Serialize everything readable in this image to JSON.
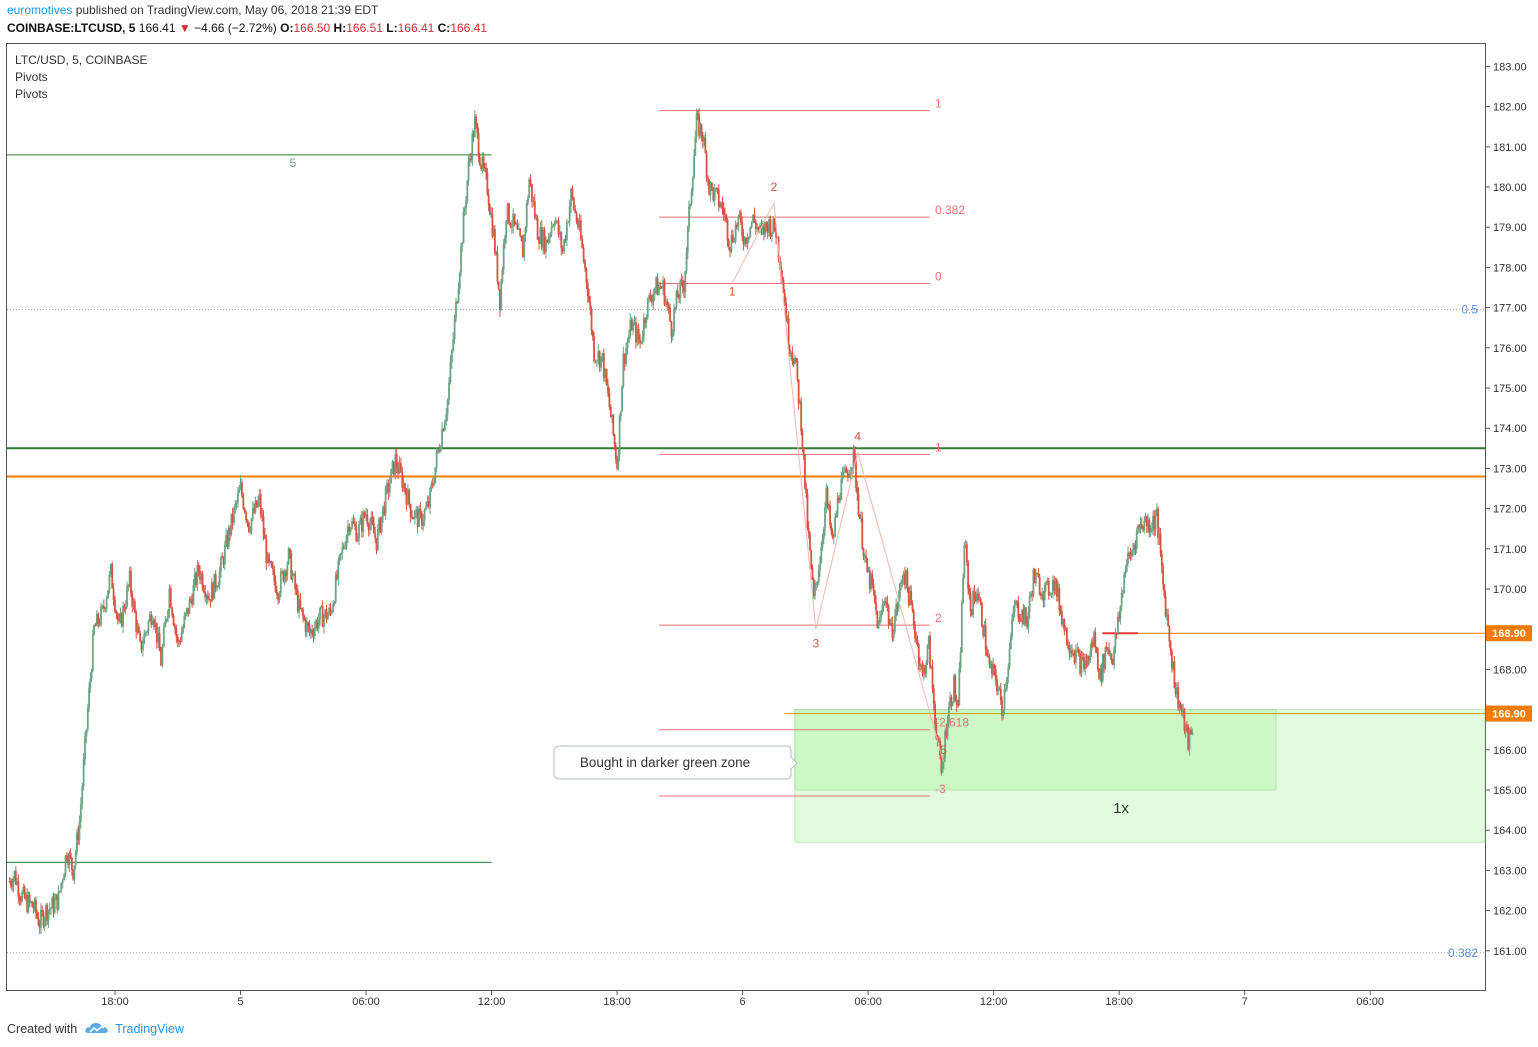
{
  "header": {
    "author": "euromotives",
    "published": " published on TradingView.com, May 06, 2018 21:39 EDT",
    "symbol": "COINBASE:LTCUSD, 5",
    "last": "166.41",
    "change": "−4.66 (−2.72%)",
    "o_label": "O:",
    "o": "166.50",
    "h_label": "H:",
    "h": "166.51",
    "l_label": "L:",
    "l": "166.41",
    "c_label": "C:",
    "c": "166.41"
  },
  "footer": {
    "created_with": "Created with",
    "brand": "TradingView"
  },
  "colors": {
    "up": "#6ba583",
    "down": "#d75442",
    "orange": "#f57c00",
    "green_line": "#2e7d32",
    "fib": "#e57373",
    "zone": "#b9f6b0"
  },
  "chart_data": {
    "type": "candlestick",
    "legend": [
      "LTC/USD, 5, COINBASE",
      "Pivots",
      "Pivots"
    ],
    "ylim": [
      160.3,
      183.5
    ],
    "yticks": [
      161,
      162,
      163,
      164,
      165,
      166,
      167,
      168,
      169,
      170,
      171,
      172,
      173,
      174,
      175,
      176,
      177,
      178,
      179,
      180,
      181,
      182,
      183
    ],
    "ytick_labels": [
      "161.00",
      "162.00",
      "163.00",
      "164.00",
      "165.00",
      "166.00",
      "167.00",
      "168.00",
      "169.00",
      "170.00",
      "171.00",
      "172.00",
      "173.00",
      "174.00",
      "175.00",
      "176.00",
      "177.00",
      "178.00",
      "179.00",
      "180.00",
      "181.00",
      "182.00",
      "183.00"
    ],
    "xticks": [
      {
        "label": "18:00",
        "t": 0
      },
      {
        "label": "5",
        "t": 6
      },
      {
        "label": "06:00",
        "t": 12
      },
      {
        "label": "12:00",
        "t": 18
      },
      {
        "label": "18:00",
        "t": 24
      },
      {
        "label": "6",
        "t": 30
      },
      {
        "label": "06:00",
        "t": 36
      },
      {
        "label": "12:00",
        "t": 42
      },
      {
        "label": "18:00",
        "t": 48
      },
      {
        "label": "7",
        "t": 54
      },
      {
        "label": "06:00",
        "t": 60
      }
    ],
    "price_path": [
      [
        -5.1,
        162.7
      ],
      [
        -4.8,
        162.9
      ],
      [
        -4.5,
        162.4
      ],
      [
        -4.2,
        162.2
      ],
      [
        -3.9,
        162.1
      ],
      [
        -3.6,
        161.7
      ],
      [
        -3.3,
        162.0
      ],
      [
        -3.0,
        162.1
      ],
      [
        -2.7,
        162.3
      ],
      [
        -2.3,
        163.5
      ],
      [
        -2.0,
        163.0
      ],
      [
        -1.7,
        164.2
      ],
      [
        -1.3,
        167.0
      ],
      [
        -1.0,
        169.0
      ],
      [
        -0.6,
        169.4
      ],
      [
        -0.2,
        170.4
      ],
      [
        0.2,
        169.0
      ],
      [
        0.7,
        170.2
      ],
      [
        1.2,
        168.5
      ],
      [
        1.8,
        169.5
      ],
      [
        2.2,
        168.2
      ],
      [
        2.6,
        170.0
      ],
      [
        3.0,
        168.6
      ],
      [
        3.5,
        169.5
      ],
      [
        4.0,
        170.5
      ],
      [
        4.5,
        169.8
      ],
      [
        5.0,
        170.4
      ],
      [
        5.5,
        171.5
      ],
      [
        6.0,
        172.5
      ],
      [
        6.4,
        171.6
      ],
      [
        6.9,
        172.2
      ],
      [
        7.3,
        170.6
      ],
      [
        7.8,
        170.0
      ],
      [
        8.3,
        170.8
      ],
      [
        8.8,
        169.5
      ],
      [
        9.3,
        168.9
      ],
      [
        9.8,
        169.3
      ],
      [
        10.3,
        169.4
      ],
      [
        10.8,
        170.8
      ],
      [
        11.2,
        171.7
      ],
      [
        11.6,
        171.4
      ],
      [
        12.0,
        171.9
      ],
      [
        12.5,
        171.2
      ],
      [
        13.0,
        172.4
      ],
      [
        13.4,
        173.2
      ],
      [
        13.8,
        172.6
      ],
      [
        14.2,
        171.9
      ],
      [
        14.6,
        171.7
      ],
      [
        15.0,
        172.1
      ],
      [
        15.5,
        173.6
      ],
      [
        15.9,
        174.7
      ],
      [
        16.3,
        177.0
      ],
      [
        16.6,
        178.8
      ],
      [
        16.9,
        180.5
      ],
      [
        17.2,
        181.6
      ],
      [
        17.5,
        180.6
      ],
      [
        17.8,
        180.0
      ],
      [
        18.1,
        178.8
      ],
      [
        18.4,
        177.2
      ],
      [
        18.7,
        179.4
      ],
      [
        19.1,
        179.0
      ],
      [
        19.5,
        178.4
      ],
      [
        19.8,
        180.2
      ],
      [
        20.2,
        178.9
      ],
      [
        20.6,
        178.6
      ],
      [
        21.0,
        179.3
      ],
      [
        21.4,
        178.4
      ],
      [
        21.8,
        179.8
      ],
      [
        22.2,
        178.9
      ],
      [
        22.6,
        177.5
      ],
      [
        22.9,
        175.9
      ],
      [
        23.3,
        175.7
      ],
      [
        23.7,
        174.3
      ],
      [
        24.0,
        173.1
      ],
      [
        24.3,
        175.7
      ],
      [
        24.7,
        176.6
      ],
      [
        25.1,
        176.1
      ],
      [
        25.4,
        177.0
      ],
      [
        25.8,
        177.5
      ],
      [
        26.2,
        177.5
      ],
      [
        26.6,
        176.5
      ],
      [
        26.9,
        177.3
      ],
      [
        27.2,
        177.6
      ],
      [
        27.5,
        179.7
      ],
      [
        27.8,
        181.6
      ],
      [
        28.1,
        181.3
      ],
      [
        28.4,
        180.0
      ],
      [
        28.8,
        179.7
      ],
      [
        29.1,
        179.4
      ],
      [
        29.4,
        178.6
      ],
      [
        29.8,
        179.2
      ],
      [
        30.1,
        178.7
      ],
      [
        30.5,
        179.2
      ],
      [
        30.9,
        178.8
      ],
      [
        31.2,
        179.1
      ],
      [
        31.6,
        178.9
      ],
      [
        31.9,
        177.8
      ],
      [
        32.2,
        176.2
      ],
      [
        32.5,
        175.7
      ],
      [
        32.8,
        174.2
      ],
      [
        33.1,
        171.6
      ],
      [
        33.4,
        169.7
      ],
      [
        33.7,
        170.8
      ],
      [
        34.0,
        172.3
      ],
      [
        34.3,
        171.1
      ],
      [
        34.6,
        172.4
      ],
      [
        34.9,
        172.8
      ],
      [
        35.3,
        173.3
      ],
      [
        35.6,
        171.8
      ],
      [
        35.9,
        170.5
      ],
      [
        36.2,
        170.0
      ],
      [
        36.5,
        169.0
      ],
      [
        36.8,
        169.9
      ],
      [
        37.1,
        168.9
      ],
      [
        37.4,
        169.6
      ],
      [
        37.7,
        170.5
      ],
      [
        38.0,
        169.7
      ],
      [
        38.3,
        168.8
      ],
      [
        38.6,
        167.8
      ],
      [
        38.9,
        168.6
      ],
      [
        39.2,
        166.8
      ],
      [
        39.5,
        165.4
      ],
      [
        39.8,
        166.9
      ],
      [
        40.1,
        167.6
      ],
      [
        40.3,
        166.9
      ],
      [
        40.6,
        171.2
      ],
      [
        40.9,
        169.5
      ],
      [
        41.2,
        170.0
      ],
      [
        41.5,
        169.1
      ],
      [
        41.8,
        168.0
      ],
      [
        42.1,
        167.8
      ],
      [
        42.4,
        167.0
      ],
      [
        42.7,
        168.2
      ],
      [
        43.0,
        169.6
      ],
      [
        43.3,
        169.4
      ],
      [
        43.6,
        169.2
      ],
      [
        43.9,
        170.3
      ],
      [
        44.2,
        170.1
      ],
      [
        44.5,
        169.9
      ],
      [
        44.9,
        170.2
      ],
      [
        45.2,
        169.5
      ],
      [
        45.5,
        168.8
      ],
      [
        45.8,
        168.5
      ],
      [
        46.2,
        168.1
      ],
      [
        46.5,
        168.2
      ],
      [
        46.8,
        168.8
      ],
      [
        47.1,
        167.8
      ],
      [
        47.4,
        168.6
      ],
      [
        47.7,
        168.3
      ],
      [
        48.0,
        169.3
      ],
      [
        48.3,
        170.6
      ],
      [
        48.6,
        170.9
      ],
      [
        48.9,
        171.5
      ],
      [
        49.2,
        171.7
      ],
      [
        49.5,
        171.6
      ],
      [
        49.8,
        171.8
      ],
      [
        50.1,
        170.1
      ],
      [
        50.4,
        168.8
      ],
      [
        50.7,
        167.5
      ],
      [
        51.0,
        166.9
      ],
      [
        51.3,
        166.2
      ],
      [
        51.5,
        166.41
      ]
    ],
    "horizontal_lines": [
      {
        "price": 173.5,
        "color": "#2e7d32",
        "t_start": -5.2,
        "t_end": 70
      },
      {
        "price": 172.8,
        "color": "#f57c00",
        "t_start": -5.2,
        "t_end": 82
      },
      {
        "price": 168.9,
        "color": "#f57c00",
        "t_start": 47.3,
        "t_end": 82
      },
      {
        "price": 166.9,
        "color": "#c6a000",
        "t_start": 32,
        "t_end": 82
      },
      {
        "price": 180.8,
        "color": "#2e7d32",
        "t_start": -5.2,
        "t_end": 18
      },
      {
        "price": 163.2,
        "color": "#2e7d32",
        "t_start": -5.2,
        "t_end": 18
      }
    ],
    "fib_upper": [
      {
        "label": "1",
        "price": 181.9
      },
      {
        "label": "0.382",
        "price": 179.25
      },
      {
        "label": "0",
        "price": 177.6
      }
    ],
    "fib_lower": [
      {
        "label": "1",
        "price": 173.35
      },
      {
        "label": "2",
        "price": 169.1
      },
      {
        "label": "-2.618",
        "price": 166.5
      },
      {
        "label": "-3",
        "price": 164.85
      }
    ],
    "pivot_labels": [
      {
        "label": "5",
        "t": 8.5,
        "price": 180.5,
        "color": "#6ba583"
      },
      {
        "label": "1",
        "t": 29.5,
        "price": 177.3,
        "color": "#d75442"
      },
      {
        "label": "2",
        "t": 31.5,
        "price": 179.9,
        "color": "#d75442"
      },
      {
        "label": "3",
        "t": 33.5,
        "price": 168.55,
        "color": "#d75442"
      },
      {
        "label": "4",
        "t": 35.5,
        "price": 173.7,
        "color": "#d75442"
      },
      {
        "label": "5",
        "t": 39.6,
        "price": 165.9,
        "color": "#d75442"
      }
    ],
    "wave_points": [
      [
        29.5,
        177.6
      ],
      [
        31.5,
        179.6
      ],
      [
        33.5,
        169.0
      ],
      [
        35.5,
        173.4
      ],
      [
        39.6,
        165.7
      ]
    ],
    "zones": [
      {
        "t_start": 32.5,
        "t_end": 82,
        "top": 167.0,
        "bottom": 163.7,
        "opacity": 0.42
      },
      {
        "t_start": 32.5,
        "t_end": 55.5,
        "top": 167.0,
        "bottom": 165.0,
        "opacity": 0.55
      }
    ],
    "price_tags": [
      {
        "label": "168.90",
        "price": 168.9
      },
      {
        "label": "166.90",
        "price": 166.9
      }
    ],
    "fib_extension_labels": [
      {
        "label": "0.5",
        "price": 176.95
      },
      {
        "label": "0.382",
        "price": 160.95
      }
    ],
    "callout": "Bought in darker green zone",
    "multiplier": "1x"
  }
}
